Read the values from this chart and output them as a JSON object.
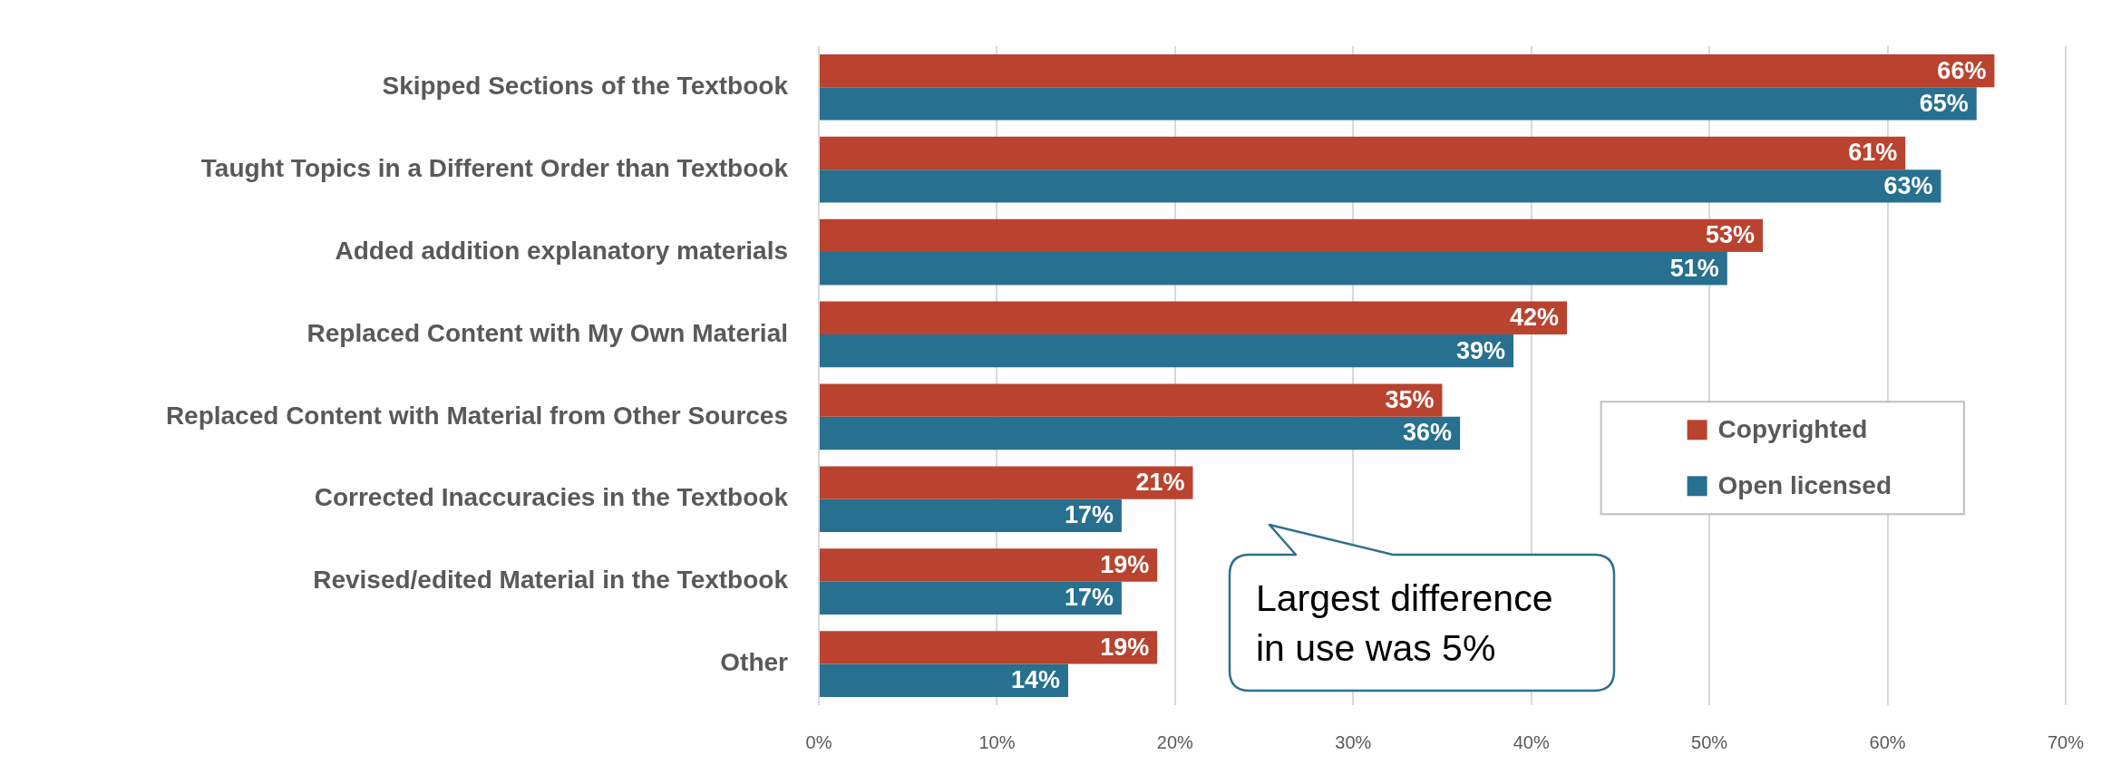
{
  "chart_data": {
    "type": "bar",
    "orientation": "horizontal",
    "categories": [
      "Skipped Sections of the Textbook",
      "Taught Topics in a Different Order than Textbook",
      "Added addition explanatory materials",
      "Replaced Content with My Own Material",
      "Replaced Content with Material from Other Sources",
      "Corrected Inaccuracies in the Textbook",
      "Revised/edited Material in the Textbook",
      "Other"
    ],
    "series": [
      {
        "name": "Copyrighted",
        "color": "#b9432f",
        "values": [
          66,
          61,
          53,
          42,
          35,
          21,
          19,
          19
        ],
        "value_labels": [
          "66%",
          "61%",
          "53%",
          "42%",
          "35%",
          "21%",
          "19%",
          "19%"
        ]
      },
      {
        "name": "Open licensed",
        "color": "#27708f",
        "values": [
          65,
          63,
          51,
          39,
          36,
          17,
          17,
          14
        ],
        "value_labels": [
          "65%",
          "63%",
          "51%",
          "39%",
          "36%",
          "17%",
          "17%",
          "14%"
        ]
      }
    ],
    "xlim": [
      0,
      70
    ],
    "xticks": [
      {
        "value": 0,
        "label": "0%"
      },
      {
        "value": 10,
        "label": "10%"
      },
      {
        "value": 20,
        "label": "20%"
      },
      {
        "value": 30,
        "label": "30%"
      },
      {
        "value": 40,
        "label": "40%"
      },
      {
        "value": 50,
        "label": "50%"
      },
      {
        "value": 60,
        "label": "60%"
      },
      {
        "value": 70,
        "label": "70%"
      }
    ],
    "grid": "x",
    "legend": "right",
    "annotations": [
      "Largest difference in use was 5%"
    ]
  }
}
